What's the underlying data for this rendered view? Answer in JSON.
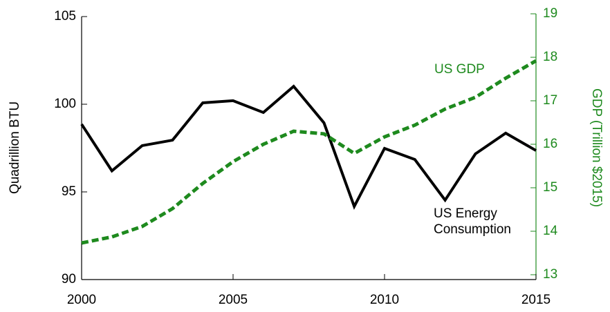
{
  "chart_data": {
    "type": "line",
    "x": [
      2000,
      2001,
      2002,
      2003,
      2004,
      2005,
      2006,
      2007,
      2008,
      2009,
      2010,
      2011,
      2012,
      2013,
      2014,
      2015
    ],
    "xlim": [
      2000,
      2015
    ],
    "xticks": [
      2000,
      2005,
      2010,
      2015
    ],
    "ylim": [
      90,
      105
    ],
    "yticks": [
      90,
      95,
      100,
      105
    ],
    "y2lim": [
      13,
      19
    ],
    "y2ticks": [
      13,
      14,
      15,
      16,
      17,
      18,
      19
    ],
    "ylabel": "Quadrillion  BTU",
    "y2label": "GDP (Trillion $2015)",
    "series": [
      {
        "label_lines": [
          "US Energy",
          "Consumption"
        ],
        "color": "#000000",
        "dash": false,
        "values": [
          98.86,
          96.2,
          97.64,
          97.95,
          100.08,
          100.2,
          99.53,
          101.02,
          98.94,
          94.17,
          97.48,
          96.85,
          94.53,
          97.17,
          98.35,
          97.36
        ]
      },
      {
        "name": "US  GDP",
        "color": "#1e8a1e",
        "dash": true,
        "axis": "y2",
        "values": [
          13.73,
          13.87,
          14.11,
          14.52,
          15.1,
          15.6,
          16.0,
          16.3,
          16.24,
          15.79,
          16.17,
          16.44,
          16.81,
          17.08,
          17.52,
          17.92
        ]
      }
    ]
  }
}
